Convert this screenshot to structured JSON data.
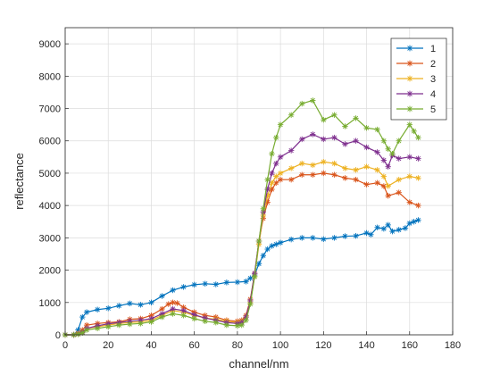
{
  "chart_data": {
    "type": "line",
    "xlabel": "channel/nm",
    "ylabel": "reflectance",
    "xlim": [
      0,
      180
    ],
    "ylim": [
      0,
      9500
    ],
    "xticks": [
      0,
      20,
      40,
      60,
      80,
      100,
      120,
      140,
      160,
      180
    ],
    "yticks": [
      0,
      1000,
      2000,
      3000,
      4000,
      5000,
      6000,
      7000,
      8000,
      9000
    ],
    "grid": true,
    "legend_position": "top-right",
    "marker": "asterisk",
    "series": [
      {
        "name": "1",
        "color": "#0072BD",
        "x": [
          0,
          4,
          6,
          8,
          10,
          15,
          20,
          25,
          30,
          35,
          40,
          45,
          50,
          55,
          60,
          65,
          70,
          75,
          80,
          84,
          86,
          88,
          90,
          92,
          94,
          96,
          98,
          100,
          105,
          110,
          115,
          120,
          125,
          130,
          135,
          140,
          142,
          145,
          148,
          150,
          152,
          155,
          158,
          160,
          162,
          164
        ],
        "y": [
          0,
          0,
          150,
          550,
          700,
          780,
          820,
          900,
          970,
          930,
          1000,
          1200,
          1380,
          1480,
          1550,
          1580,
          1560,
          1620,
          1630,
          1650,
          1750,
          1850,
          2200,
          2450,
          2650,
          2750,
          2800,
          2850,
          2950,
          3000,
          3000,
          2960,
          3000,
          3050,
          3060,
          3150,
          3100,
          3320,
          3280,
          3400,
          3200,
          3250,
          3300,
          3450,
          3500,
          3550
        ]
      },
      {
        "name": "2",
        "color": "#D95319",
        "x": [
          0,
          4,
          6,
          8,
          10,
          15,
          20,
          25,
          30,
          35,
          40,
          45,
          48,
          50,
          52,
          55,
          60,
          65,
          70,
          75,
          80,
          82,
          84,
          86,
          88,
          90,
          92,
          94,
          96,
          98,
          100,
          105,
          110,
          115,
          120,
          125,
          130,
          135,
          140,
          145,
          148,
          150,
          155,
          160,
          164
        ],
        "y": [
          0,
          0,
          50,
          150,
          300,
          350,
          380,
          400,
          480,
          500,
          600,
          800,
          950,
          1000,
          980,
          850,
          700,
          600,
          550,
          450,
          420,
          450,
          600,
          1100,
          1900,
          2900,
          3600,
          4100,
          4500,
          4700,
          4800,
          4800,
          4950,
          4950,
          5000,
          4950,
          4850,
          4800,
          4650,
          4700,
          4600,
          4300,
          4400,
          4100,
          4000
        ]
      },
      {
        "name": "3",
        "color": "#EDB120",
        "x": [
          0,
          4,
          6,
          8,
          10,
          15,
          20,
          25,
          30,
          35,
          40,
          45,
          50,
          55,
          60,
          65,
          70,
          75,
          80,
          82,
          84,
          86,
          88,
          90,
          92,
          94,
          96,
          98,
          100,
          105,
          110,
          115,
          120,
          125,
          130,
          135,
          140,
          145,
          148,
          150,
          155,
          160,
          164
        ],
        "y": [
          0,
          0,
          20,
          80,
          200,
          250,
          300,
          350,
          380,
          400,
          450,
          600,
          750,
          700,
          600,
          520,
          480,
          420,
          380,
          400,
          550,
          1000,
          1800,
          2800,
          3700,
          4300,
          4700,
          4900,
          5000,
          5150,
          5300,
          5250,
          5350,
          5300,
          5150,
          5100,
          5200,
          5100,
          4900,
          4600,
          4800,
          4900,
          4850
        ]
      },
      {
        "name": "4",
        "color": "#7E2F8E",
        "x": [
          0,
          4,
          6,
          8,
          10,
          15,
          20,
          25,
          30,
          35,
          40,
          45,
          50,
          55,
          60,
          65,
          70,
          75,
          80,
          82,
          84,
          86,
          88,
          90,
          92,
          94,
          96,
          98,
          100,
          105,
          110,
          115,
          120,
          125,
          130,
          135,
          140,
          145,
          148,
          150,
          152,
          155,
          160,
          164
        ],
        "y": [
          0,
          0,
          20,
          80,
          200,
          280,
          340,
          380,
          420,
          450,
          500,
          650,
          800,
          750,
          620,
          520,
          450,
          380,
          350,
          380,
          550,
          1050,
          1900,
          2900,
          3800,
          4500,
          5000,
          5300,
          5500,
          5700,
          6050,
          6200,
          6050,
          6100,
          5900,
          6000,
          5800,
          5650,
          5400,
          5200,
          5550,
          5450,
          5500,
          5450
        ]
      },
      {
        "name": "5",
        "color": "#77AC30",
        "x": [
          0,
          4,
          6,
          8,
          10,
          15,
          20,
          25,
          30,
          35,
          40,
          45,
          50,
          55,
          60,
          65,
          70,
          75,
          80,
          82,
          84,
          86,
          88,
          90,
          92,
          94,
          96,
          98,
          100,
          105,
          110,
          115,
          120,
          125,
          130,
          135,
          140,
          145,
          148,
          150,
          152,
          155,
          160,
          162,
          164
        ],
        "y": [
          0,
          0,
          20,
          60,
          150,
          200,
          250,
          300,
          330,
          350,
          400,
          550,
          650,
          600,
          500,
          420,
          380,
          300,
          280,
          300,
          450,
          950,
          1800,
          2900,
          3900,
          4800,
          5600,
          6100,
          6500,
          6800,
          7150,
          7250,
          6650,
          6800,
          6450,
          6700,
          6400,
          6350,
          6000,
          5750,
          5600,
          6000,
          6500,
          6300,
          6100
        ]
      }
    ]
  }
}
